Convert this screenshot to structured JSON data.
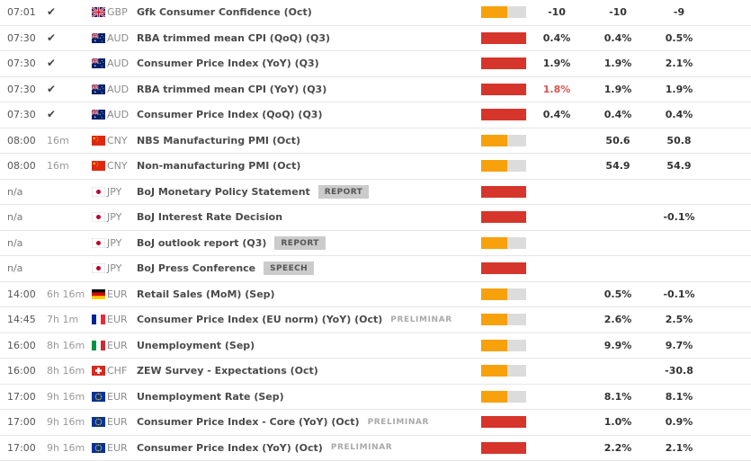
{
  "colors": {
    "impact_high": "#d6352b",
    "impact_medium": "#f7a10c",
    "bar_track": "#dcdcdc",
    "actual_deviation": "#d9534f"
  },
  "impact_fill": {
    "high": 1.0,
    "medium": 0.58
  },
  "rows": [
    {
      "time": "07:01",
      "status": "check",
      "countdown": "",
      "flag": "gb",
      "currency": "GBP",
      "event": "Gfk Consumer Confidence (Oct)",
      "tag": null,
      "impact": "medium",
      "actual": "-10",
      "actual_red": false,
      "consensus": "-10",
      "previous": "-9"
    },
    {
      "time": "07:30",
      "status": "check",
      "countdown": "",
      "flag": "au",
      "currency": "AUD",
      "event": "RBA trimmed mean CPI (QoQ) (Q3)",
      "tag": null,
      "impact": "high",
      "actual": "0.4%",
      "actual_red": false,
      "consensus": "0.4%",
      "previous": "0.5%"
    },
    {
      "time": "07:30",
      "status": "check",
      "countdown": "",
      "flag": "au",
      "currency": "AUD",
      "event": "Consumer Price Index (YoY) (Q3)",
      "tag": null,
      "impact": "high",
      "actual": "1.9%",
      "actual_red": false,
      "consensus": "1.9%",
      "previous": "2.1%"
    },
    {
      "time": "07:30",
      "status": "check",
      "countdown": "",
      "flag": "au",
      "currency": "AUD",
      "event": "RBA trimmed mean CPI (YoY) (Q3)",
      "tag": null,
      "impact": "high",
      "actual": "1.8%",
      "actual_red": true,
      "consensus": "1.9%",
      "previous": "1.9%"
    },
    {
      "time": "07:30",
      "status": "check",
      "countdown": "",
      "flag": "au",
      "currency": "AUD",
      "event": "Consumer Price Index (QoQ) (Q3)",
      "tag": null,
      "impact": "high",
      "actual": "0.4%",
      "actual_red": false,
      "consensus": "0.4%",
      "previous": "0.4%"
    },
    {
      "time": "08:00",
      "status": "countdown",
      "countdown": "16m",
      "flag": "cn",
      "currency": "CNY",
      "event": "NBS Manufacturing PMI (Oct)",
      "tag": null,
      "impact": "medium",
      "actual": "",
      "actual_red": false,
      "consensus": "50.6",
      "previous": "50.8"
    },
    {
      "time": "08:00",
      "status": "countdown",
      "countdown": "16m",
      "flag": "cn",
      "currency": "CNY",
      "event": "Non-manufacturing PMI (Oct)",
      "tag": null,
      "impact": "medium",
      "actual": "",
      "actual_red": false,
      "consensus": "54.9",
      "previous": "54.9"
    },
    {
      "time": "n/a",
      "status": "none",
      "countdown": "",
      "flag": "jp",
      "currency": "JPY",
      "event": "BoJ Monetary Policy Statement",
      "tag": {
        "label": "REPORT",
        "style": "badge"
      },
      "impact": "high",
      "actual": "",
      "actual_red": false,
      "consensus": "",
      "previous": ""
    },
    {
      "time": "n/a",
      "status": "none",
      "countdown": "",
      "flag": "jp",
      "currency": "JPY",
      "event": "BoJ Interest Rate Decision",
      "tag": null,
      "impact": "high",
      "actual": "",
      "actual_red": false,
      "consensus": "",
      "previous": "-0.1%"
    },
    {
      "time": "n/a",
      "status": "none",
      "countdown": "",
      "flag": "jp",
      "currency": "JPY",
      "event": "BoJ outlook report (Q3)",
      "tag": {
        "label": "REPORT",
        "style": "badge"
      },
      "impact": "medium",
      "actual": "",
      "actual_red": false,
      "consensus": "",
      "previous": ""
    },
    {
      "time": "n/a",
      "status": "none",
      "countdown": "",
      "flag": "jp",
      "currency": "JPY",
      "event": "BoJ Press Conference",
      "tag": {
        "label": "SPEECH",
        "style": "badge"
      },
      "impact": "high",
      "actual": "",
      "actual_red": false,
      "consensus": "",
      "previous": ""
    },
    {
      "time": "14:00",
      "status": "countdown",
      "countdown": "6h 16m",
      "flag": "de",
      "currency": "EUR",
      "event": "Retail Sales (MoM) (Sep)",
      "tag": null,
      "impact": "medium",
      "actual": "",
      "actual_red": false,
      "consensus": "0.5%",
      "previous": "-0.1%"
    },
    {
      "time": "14:45",
      "status": "countdown",
      "countdown": "7h 1m",
      "flag": "fr",
      "currency": "EUR",
      "event": "Consumer Price Index (EU norm) (YoY) (Oct)",
      "tag": {
        "label": "PRELIMINAR",
        "style": "plain"
      },
      "impact": "medium",
      "actual": "",
      "actual_red": false,
      "consensus": "2.6%",
      "previous": "2.5%"
    },
    {
      "time": "16:00",
      "status": "countdown",
      "countdown": "8h 16m",
      "flag": "it",
      "currency": "EUR",
      "event": "Unemployment (Sep)",
      "tag": null,
      "impact": "medium",
      "actual": "",
      "actual_red": false,
      "consensus": "9.9%",
      "previous": "9.7%"
    },
    {
      "time": "16:00",
      "status": "countdown",
      "countdown": "8h 16m",
      "flag": "ch",
      "currency": "CHF",
      "event": "ZEW Survey - Expectations (Oct)",
      "tag": null,
      "impact": "medium",
      "actual": "",
      "actual_red": false,
      "consensus": "",
      "previous": "-30.8"
    },
    {
      "time": "17:00",
      "status": "countdown",
      "countdown": "9h 16m",
      "flag": "eu",
      "currency": "EUR",
      "event": "Unemployment Rate (Sep)",
      "tag": null,
      "impact": "medium",
      "actual": "",
      "actual_red": false,
      "consensus": "8.1%",
      "previous": "8.1%"
    },
    {
      "time": "17:00",
      "status": "countdown",
      "countdown": "9h 16m",
      "flag": "eu",
      "currency": "EUR",
      "event": "Consumer Price Index - Core (YoY) (Oct)",
      "tag": {
        "label": "PRELIMINAR",
        "style": "plain"
      },
      "impact": "high",
      "actual": "",
      "actual_red": false,
      "consensus": "1.0%",
      "previous": "0.9%"
    },
    {
      "time": "17:00",
      "status": "countdown",
      "countdown": "9h 16m",
      "flag": "eu",
      "currency": "EUR",
      "event": "Consumer Price Index (YoY) (Oct)",
      "tag": {
        "label": "PRELIMINAR",
        "style": "plain"
      },
      "impact": "high",
      "actual": "",
      "actual_red": false,
      "consensus": "2.2%",
      "previous": "2.1%"
    }
  ]
}
